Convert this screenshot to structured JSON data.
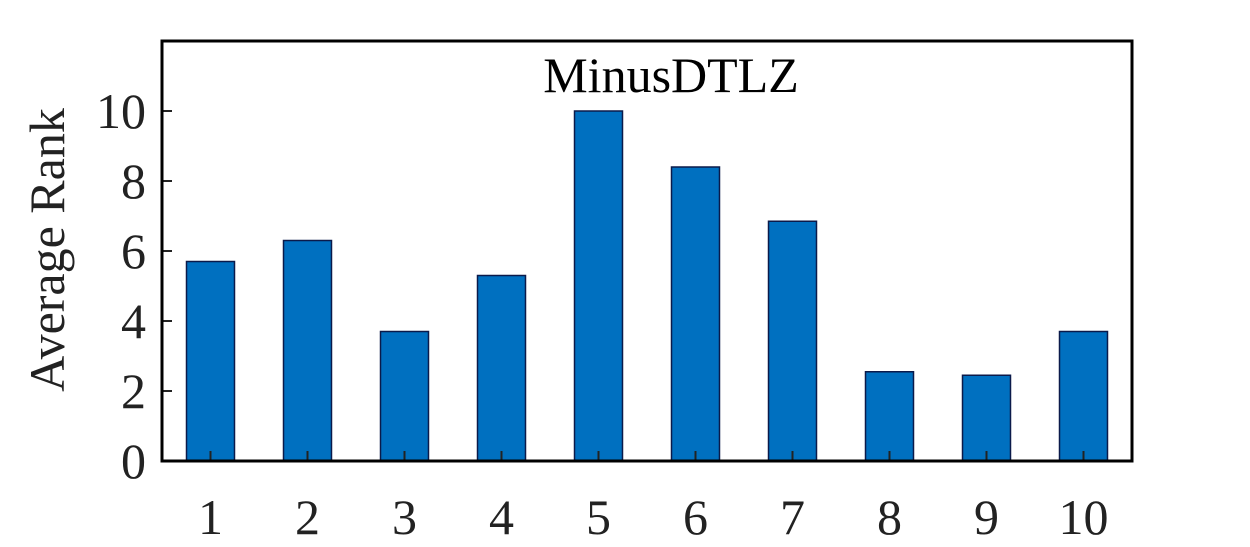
{
  "chart_data": {
    "type": "bar",
    "title": "MinusDTLZ",
    "xlabel": "",
    "ylabel": "Average Rank",
    "categories": [
      "1",
      "2",
      "3",
      "4",
      "5",
      "6",
      "7",
      "8",
      "9",
      "10"
    ],
    "values": [
      5.7,
      6.3,
      3.7,
      5.3,
      10.0,
      8.4,
      6.85,
      2.55,
      2.45,
      3.7
    ],
    "ylim": [
      0,
      12
    ],
    "yticks": [
      "0",
      "2",
      "4",
      "6",
      "8",
      "10"
    ],
    "grid": false,
    "bar_color": "#0070c0",
    "bar_edge_color": "#0b1a4a"
  }
}
